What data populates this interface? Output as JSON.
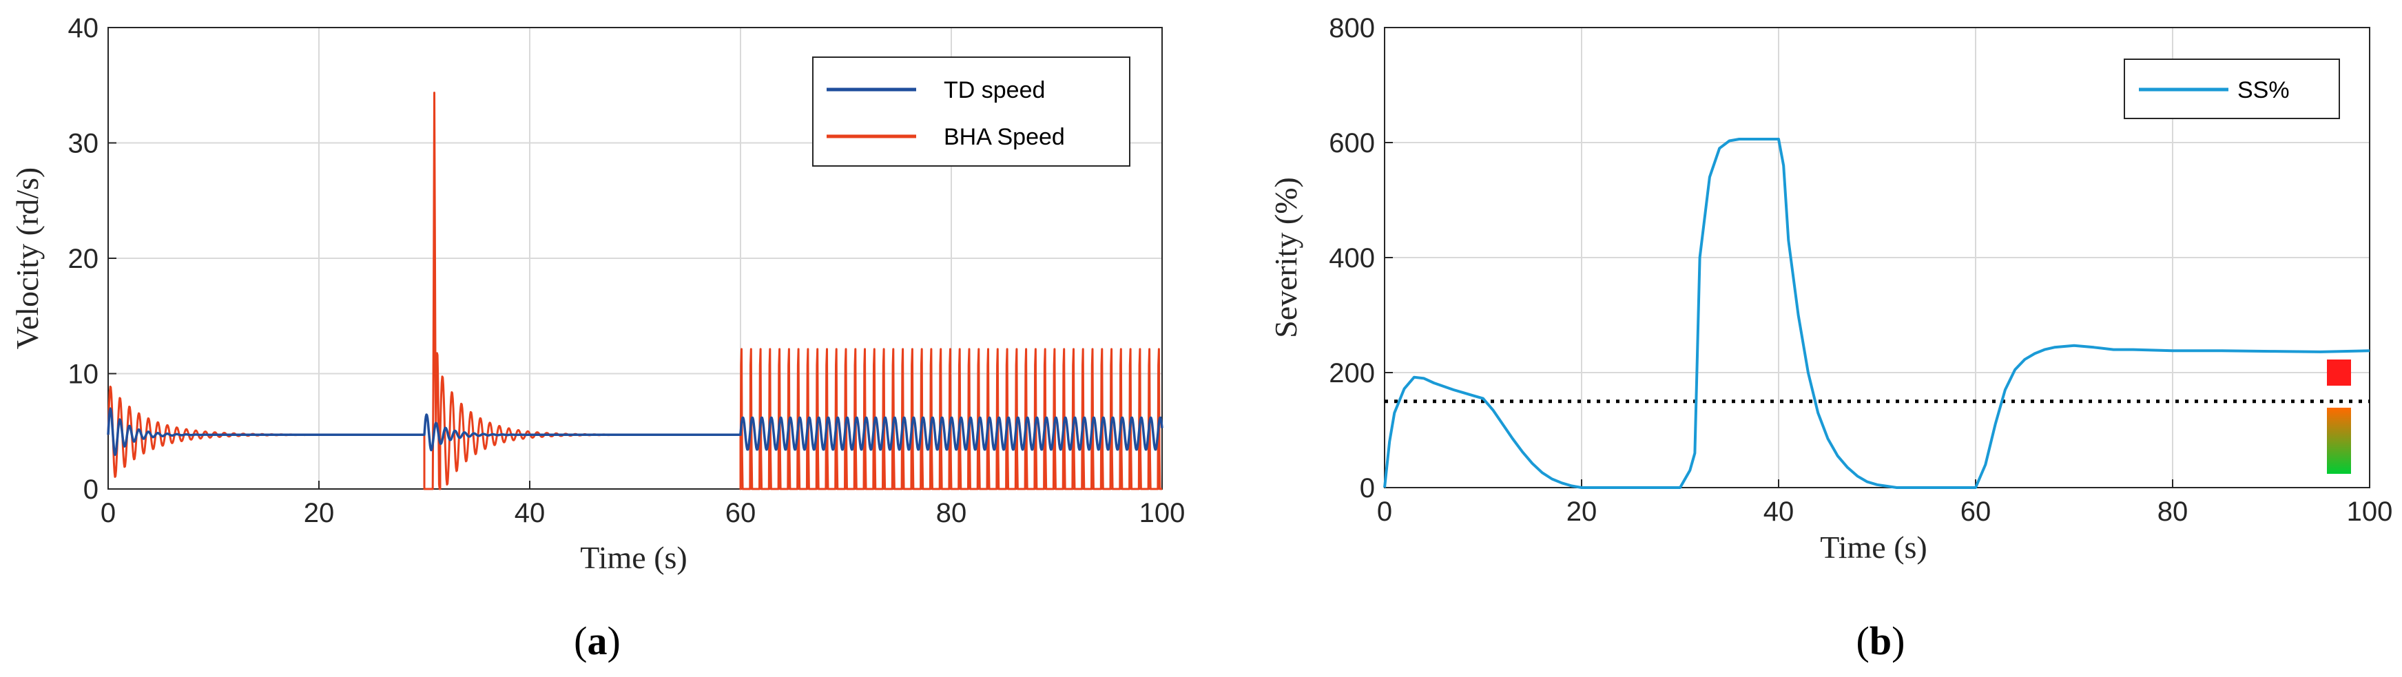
{
  "chart_data": [
    {
      "type": "line",
      "panel_label": "(a)",
      "panel_letter": "a",
      "xlabel": "Time (s)",
      "ylabel": "Velocity (rd/s)",
      "xlim": [
        0,
        100
      ],
      "ylim": [
        0,
        40
      ],
      "xticks": [
        "0",
        "20",
        "40",
        "60",
        "80",
        "100"
      ],
      "yticks": [
        "0",
        "10",
        "20",
        "30",
        "40"
      ],
      "grid": true,
      "legend_position": "top-right",
      "series": [
        {
          "name": "TD speed",
          "color": "#1f4e9c",
          "segments": [
            {
              "t": [
                0,
                30
              ],
              "mean": 4.7,
              "osc_amp": 2.6,
              "period": 0.9,
              "decay": 0.6
            },
            {
              "t": [
                30,
                60
              ],
              "mean": 4.7,
              "osc_amp": 2.0,
              "period": 0.9,
              "decay": 0.6
            },
            {
              "t": [
                60,
                100
              ],
              "mean": 4.8,
              "osc_amp": 1.4,
              "period": 0.9,
              "decay": 0
            },
            "…"
          ]
        },
        {
          "name": "BHA Speed",
          "color": "#e8401c",
          "segments": [
            {
              "t": [
                0,
                30
              ],
              "mean": 4.7,
              "osc_amp": 4.5,
              "period": 0.9,
              "decay": 0.3,
              "min": 0
            },
            {
              "t": [
                30,
                31.5
              ],
              "mean": 0,
              "spike_max": 35
            },
            {
              "t": [
                31.5,
                60
              ],
              "mean": 4.7,
              "osc_amp": 5.5,
              "period": 0.9,
              "decay": 0.35,
              "min": 0
            },
            {
              "t": [
                60,
                100
              ],
              "min": 0,
              "max": 13,
              "period": 0.9,
              "pattern": "stick-slip"
            },
            "…"
          ]
        }
      ]
    },
    {
      "type": "line",
      "panel_label": "(b)",
      "panel_letter": "b",
      "xlabel": "Time (s)",
      "ylabel": "Severity (%)",
      "xlim": [
        0,
        100
      ],
      "ylim": [
        0,
        800
      ],
      "xticks": [
        "0",
        "20",
        "40",
        "60",
        "80",
        "100"
      ],
      "yticks": [
        "0",
        "200",
        "400",
        "600",
        "800"
      ],
      "grid": true,
      "legend_position": "top-right",
      "threshold": {
        "y": 150,
        "style": "dotted",
        "color": "#000000"
      },
      "severity_indicator": {
        "high_color": "#ff1a1a",
        "gradient": [
          "#ff6a00",
          "#00cc33"
        ]
      },
      "series": [
        {
          "name": "SS%",
          "color": "#1a9ad6",
          "x": [
            0,
            0.5,
            1,
            2,
            3,
            4,
            5,
            6,
            7,
            8,
            9,
            10,
            11,
            12,
            13,
            14,
            15,
            16,
            17,
            18,
            19,
            20,
            22,
            24,
            26,
            28,
            30,
            31,
            31.5,
            32,
            33,
            34,
            35,
            36,
            37,
            38,
            39,
            40,
            40.5,
            41,
            42,
            43,
            44,
            45,
            46,
            47,
            48,
            49,
            50,
            52,
            54,
            56,
            58,
            60,
            61,
            62,
            63,
            64,
            65,
            66,
            67,
            68,
            70,
            72,
            74,
            76,
            80,
            85,
            90,
            95,
            100
          ],
          "y": [
            0,
            80,
            130,
            172,
            192,
            190,
            182,
            176,
            170,
            165,
            160,
            155,
            135,
            110,
            85,
            62,
            42,
            26,
            15,
            8,
            3,
            0,
            0,
            0,
            0,
            0,
            0,
            30,
            60,
            400,
            540,
            590,
            603,
            606,
            606,
            606,
            606,
            606,
            560,
            430,
            300,
            200,
            130,
            85,
            55,
            35,
            20,
            10,
            5,
            0,
            0,
            0,
            0,
            0,
            40,
            110,
            170,
            205,
            223,
            233,
            240,
            244,
            247,
            244,
            240,
            240,
            238,
            238,
            237,
            236,
            238
          ]
        }
      ]
    }
  ]
}
